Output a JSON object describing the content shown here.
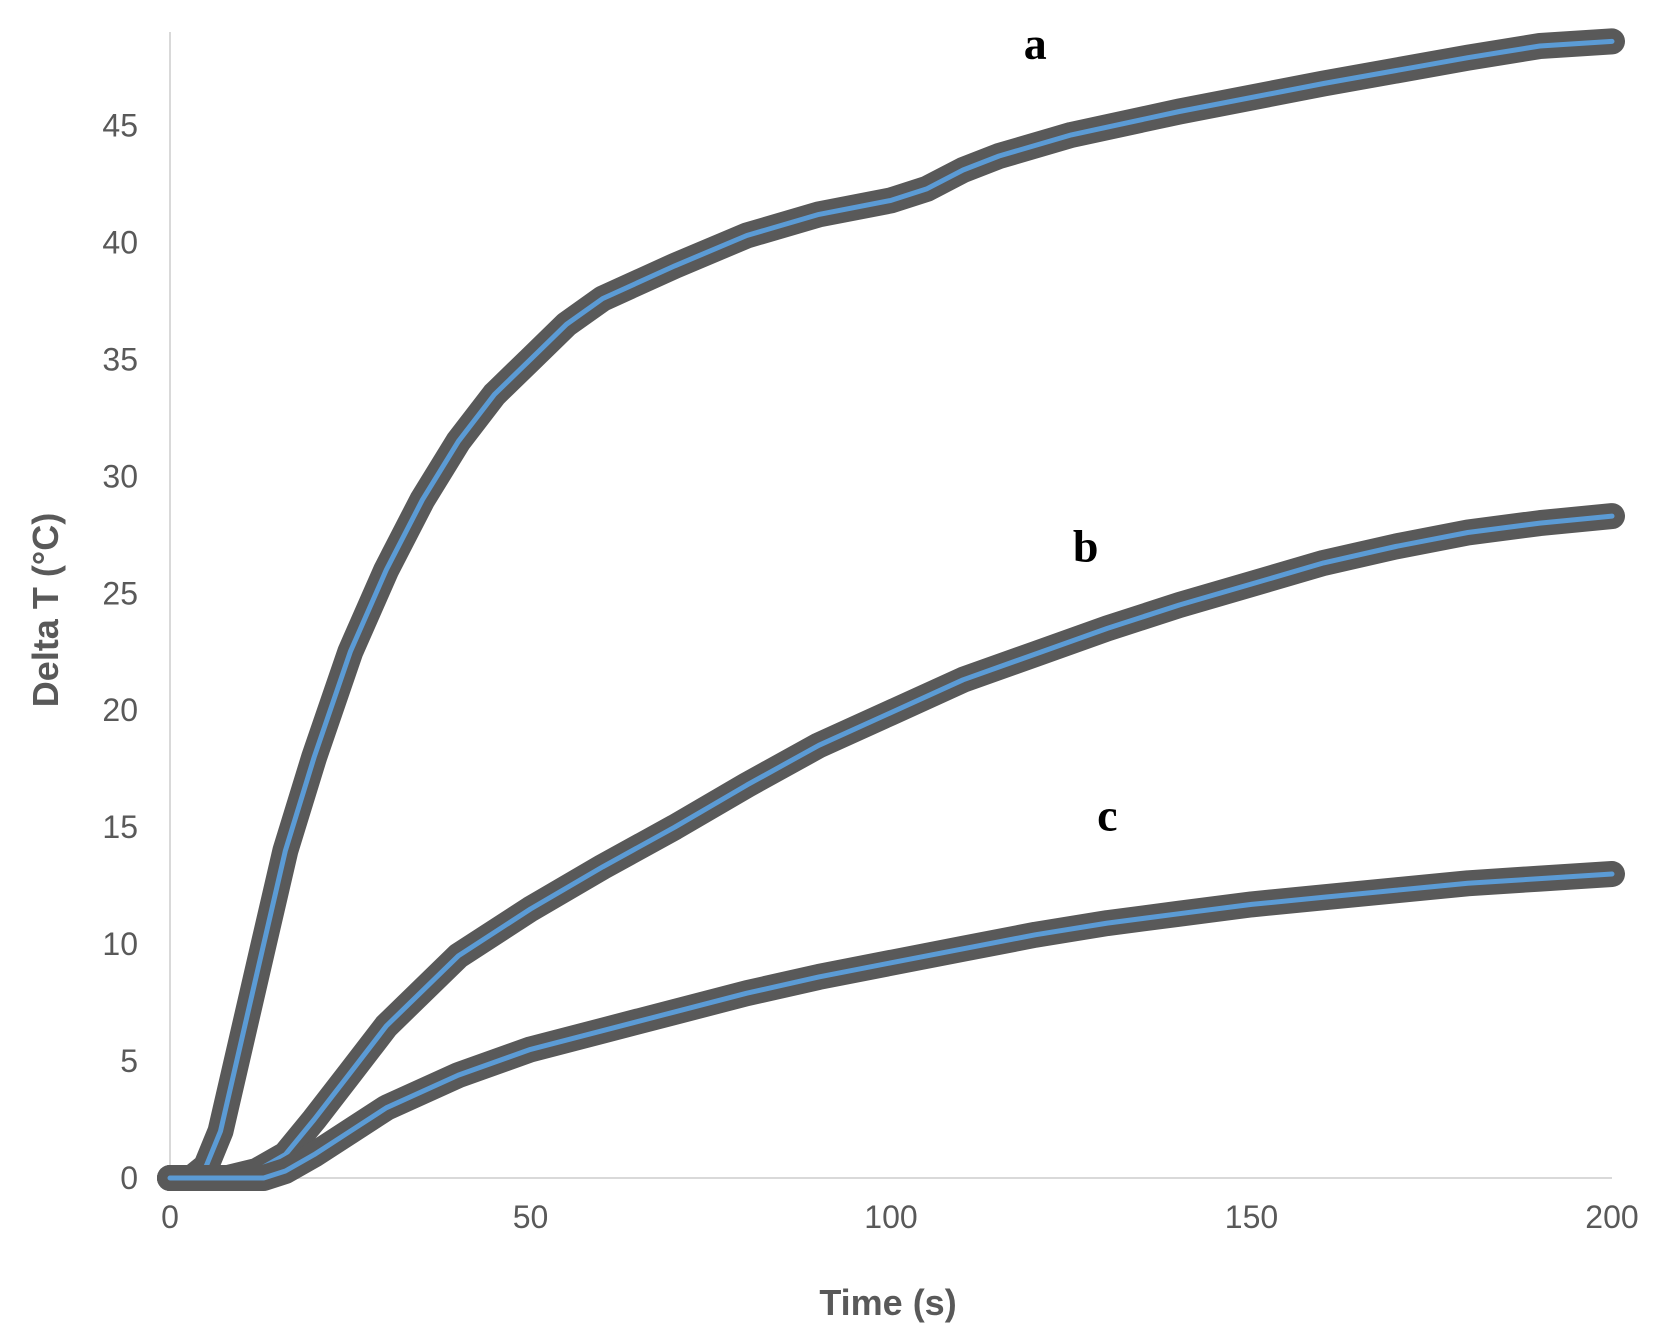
{
  "chart_data": {
    "type": "line",
    "title": "",
    "xlabel": "Time (s)",
    "ylabel": "Delta T (°C)",
    "xlim": [
      0,
      200
    ],
    "ylim": [
      0,
      49
    ],
    "x_ticks": [
      "0",
      "50",
      "100",
      "150",
      "200"
    ],
    "y_ticks": [
      "0",
      "5",
      "10",
      "15",
      "20",
      "25",
      "30",
      "35",
      "40",
      "45"
    ],
    "grid": false,
    "legend": "none",
    "colors": {
      "fit_line": "#5b9bd5",
      "data_band": "#595959",
      "axis": "#d9d9d9"
    },
    "series": [
      {
        "label": "a",
        "points": [
          [
            0,
            0
          ],
          [
            3,
            0
          ],
          [
            5,
            0.5
          ],
          [
            7,
            2
          ],
          [
            10,
            6
          ],
          [
            13,
            10
          ],
          [
            16,
            14
          ],
          [
            20,
            18
          ],
          [
            25,
            22.5
          ],
          [
            30,
            26
          ],
          [
            35,
            29
          ],
          [
            40,
            31.5
          ],
          [
            45,
            33.5
          ],
          [
            50,
            35
          ],
          [
            55,
            36.5
          ],
          [
            60,
            37.6
          ],
          [
            70,
            39
          ],
          [
            80,
            40.3
          ],
          [
            90,
            41.2
          ],
          [
            100,
            41.8
          ],
          [
            105,
            42.3
          ],
          [
            110,
            43.1
          ],
          [
            115,
            43.7
          ],
          [
            125,
            44.6
          ],
          [
            140,
            45.6
          ],
          [
            160,
            46.8
          ],
          [
            180,
            47.9
          ],
          [
            190,
            48.4
          ],
          [
            200,
            48.6
          ]
        ]
      },
      {
        "label": "b",
        "points": [
          [
            0,
            0
          ],
          [
            8,
            0
          ],
          [
            12,
            0.3
          ],
          [
            16,
            1
          ],
          [
            20,
            2.5
          ],
          [
            25,
            4.5
          ],
          [
            30,
            6.5
          ],
          [
            40,
            9.5
          ],
          [
            50,
            11.5
          ],
          [
            60,
            13.3
          ],
          [
            70,
            15
          ],
          [
            80,
            16.8
          ],
          [
            90,
            18.5
          ],
          [
            100,
            19.9
          ],
          [
            110,
            21.3
          ],
          [
            120,
            22.4
          ],
          [
            130,
            23.5
          ],
          [
            140,
            24.5
          ],
          [
            150,
            25.4
          ],
          [
            160,
            26.3
          ],
          [
            170,
            27
          ],
          [
            180,
            27.6
          ],
          [
            190,
            28
          ],
          [
            200,
            28.3
          ]
        ]
      },
      {
        "label": "c",
        "points": [
          [
            0,
            0
          ],
          [
            8,
            0
          ],
          [
            13,
            0
          ],
          [
            16,
            0.3
          ],
          [
            20,
            1
          ],
          [
            25,
            2
          ],
          [
            30,
            3
          ],
          [
            40,
            4.4
          ],
          [
            50,
            5.5
          ],
          [
            60,
            6.3
          ],
          [
            70,
            7.1
          ],
          [
            80,
            7.9
          ],
          [
            90,
            8.6
          ],
          [
            100,
            9.2
          ],
          [
            110,
            9.8
          ],
          [
            120,
            10.4
          ],
          [
            130,
            10.9
          ],
          [
            140,
            11.3
          ],
          [
            150,
            11.7
          ],
          [
            160,
            12
          ],
          [
            170,
            12.3
          ],
          [
            180,
            12.6
          ],
          [
            190,
            12.8
          ],
          [
            200,
            13
          ]
        ]
      }
    ]
  }
}
